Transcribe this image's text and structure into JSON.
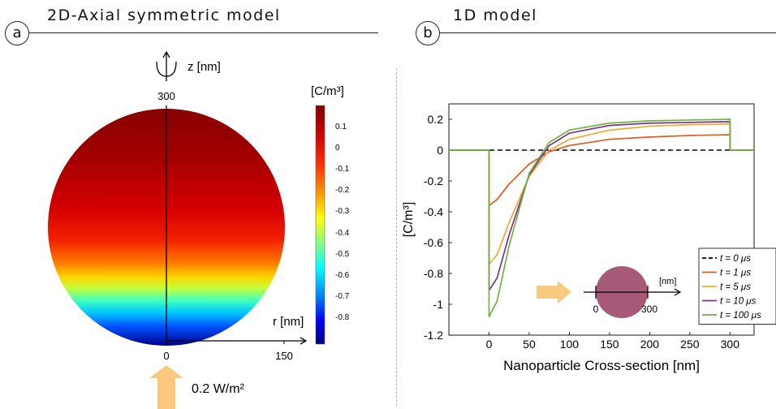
{
  "panel_a": {
    "letter": "a",
    "title": "2D-Axial symmetric model",
    "z_axis_label": "z [nm]",
    "z_top_tick": "300",
    "r_axis_label": "r [nm]",
    "r_ticks": [
      "0",
      "150"
    ],
    "colorbar_unit": "[C/m³]",
    "colorbar_ticks": [
      "0.1",
      "0",
      "-0.1",
      "-0.2",
      "-0.3",
      "-0.4",
      "-0.5",
      "-0.6",
      "-0.7",
      "-0.8"
    ],
    "input_label": "0.2 W/m²"
  },
  "panel_b": {
    "letter": "b",
    "title": "1D model",
    "inset": {
      "unit": "[nm]",
      "start": "0",
      "end": "300"
    }
  },
  "colors": {
    "arrow": "#f9c97e",
    "nanoparticle": "#a65a78",
    "sphere_top": "#8b0000",
    "sphere_bottom": "#00008b"
  },
  "chart_data": {
    "type": "line",
    "title": "",
    "xlabel": "Nanoparticle Cross-section [nm]",
    "ylabel": "[C/m³]",
    "xlim": [
      -50,
      330
    ],
    "ylim": [
      -1.2,
      0.3
    ],
    "xticks": [
      0,
      50,
      100,
      150,
      200,
      250,
      300
    ],
    "yticks": [
      -1.2,
      -1,
      -0.8,
      -0.6,
      -0.4,
      -0.2,
      0,
      0.2
    ],
    "grid": false,
    "legend_position": "bottom-right",
    "series": [
      {
        "name": "t = 0 μs",
        "color": "#000000",
        "dash": true,
        "x": [
          -50,
          330
        ],
        "y": [
          0,
          0
        ]
      },
      {
        "name": "t = 1 μs",
        "color": "#e05a1c",
        "x": [
          -50,
          0,
          0,
          10,
          25,
          50,
          75,
          100,
          150,
          200,
          250,
          300,
          300,
          330
        ],
        "y": [
          0,
          0,
          -0.36,
          -0.32,
          -0.22,
          -0.09,
          -0.01,
          0.03,
          0.07,
          0.085,
          0.095,
          0.1,
          0,
          0
        ]
      },
      {
        "name": "t = 5 μs",
        "color": "#f0a830",
        "x": [
          -50,
          0,
          0,
          10,
          25,
          50,
          75,
          100,
          150,
          200,
          250,
          300,
          300,
          330
        ],
        "y": [
          0,
          0,
          -0.74,
          -0.68,
          -0.47,
          -0.17,
          0,
          0.07,
          0.13,
          0.155,
          0.165,
          0.17,
          0,
          0
        ]
      },
      {
        "name": "t = 10 μs",
        "color": "#7e2f8e",
        "x": [
          -50,
          0,
          0,
          10,
          25,
          50,
          75,
          100,
          150,
          200,
          250,
          300,
          300,
          330
        ],
        "y": [
          0,
          0,
          -0.91,
          -0.83,
          -0.55,
          -0.16,
          0.03,
          0.11,
          0.16,
          0.175,
          0.18,
          0.185,
          0,
          0
        ]
      },
      {
        "name": "t = 100 μs",
        "color": "#6db33f",
        "x": [
          -50,
          0,
          0,
          10,
          25,
          50,
          75,
          100,
          150,
          200,
          250,
          300,
          300,
          330
        ],
        "y": [
          0,
          0,
          -1.08,
          -0.98,
          -0.62,
          -0.15,
          0.05,
          0.13,
          0.175,
          0.19,
          0.195,
          0.2,
          0,
          0
        ]
      }
    ]
  }
}
